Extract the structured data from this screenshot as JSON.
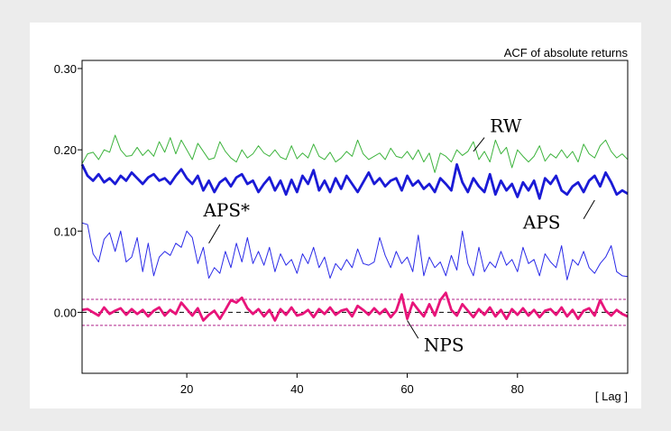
{
  "chart_data": {
    "type": "line",
    "title": "ACF of absolute returns",
    "xlabel": "[ Lag ]",
    "ylabel": "",
    "xlim": [
      1,
      100
    ],
    "ylim": [
      -0.075,
      0.31
    ],
    "x_ticks": [
      20,
      40,
      60,
      80
    ],
    "x_tick_labels": [
      "20",
      "40",
      "60",
      "80"
    ],
    "y_ticks": [
      0.0,
      0.1,
      0.2,
      0.3
    ],
    "y_tick_labels": [
      "0.00",
      "0.10",
      "0.20",
      "0.30"
    ],
    "grid": false,
    "legend": "none",
    "confidence_band": {
      "upper": 0.016,
      "lower": -0.016,
      "color": "#b0208a"
    },
    "zero_line_color": "#000000",
    "series": [
      {
        "name": "RW",
        "color": "#3cb33c",
        "width": 1,
        "label_at": [
          75,
          0.222
        ],
        "pointer": [
          [
            74,
            0.215
          ],
          [
            72,
            0.198
          ]
        ],
        "values": [
          0.183,
          0.195,
          0.197,
          0.188,
          0.2,
          0.197,
          0.218,
          0.2,
          0.192,
          0.193,
          0.203,
          0.193,
          0.2,
          0.192,
          0.21,
          0.197,
          0.215,
          0.195,
          0.212,
          0.2,
          0.188,
          0.208,
          0.198,
          0.188,
          0.19,
          0.21,
          0.198,
          0.19,
          0.185,
          0.2,
          0.19,
          0.195,
          0.205,
          0.196,
          0.192,
          0.2,
          0.191,
          0.188,
          0.205,
          0.189,
          0.196,
          0.19,
          0.207,
          0.192,
          0.188,
          0.197,
          0.185,
          0.19,
          0.198,
          0.192,
          0.212,
          0.195,
          0.188,
          0.192,
          0.196,
          0.188,
          0.202,
          0.192,
          0.19,
          0.198,
          0.188,
          0.2,
          0.185,
          0.196,
          0.172,
          0.196,
          0.192,
          0.185,
          0.2,
          0.193,
          0.198,
          0.21,
          0.188,
          0.198,
          0.185,
          0.212,
          0.195,
          0.203,
          0.178,
          0.2,
          0.192,
          0.185,
          0.192,
          0.205,
          0.186,
          0.195,
          0.19,
          0.2,
          0.19,
          0.198,
          0.185,
          0.207,
          0.195,
          0.19,
          0.205,
          0.212,
          0.198,
          0.19,
          0.195,
          0.188
        ]
      },
      {
        "name": "APS",
        "color": "#1a1ad6",
        "width": 2.8,
        "label_at": [
          81,
          0.103
        ],
        "pointer": [
          [
            92,
            0.115
          ],
          [
            94,
            0.138
          ]
        ],
        "values": [
          0.182,
          0.168,
          0.162,
          0.17,
          0.16,
          0.165,
          0.158,
          0.168,
          0.162,
          0.172,
          0.165,
          0.158,
          0.166,
          0.17,
          0.162,
          0.165,
          0.158,
          0.168,
          0.176,
          0.165,
          0.158,
          0.168,
          0.15,
          0.162,
          0.148,
          0.16,
          0.165,
          0.155,
          0.166,
          0.17,
          0.158,
          0.162,
          0.148,
          0.158,
          0.166,
          0.15,
          0.162,
          0.145,
          0.163,
          0.148,
          0.168,
          0.158,
          0.175,
          0.15,
          0.162,
          0.148,
          0.165,
          0.152,
          0.168,
          0.158,
          0.148,
          0.16,
          0.172,
          0.158,
          0.165,
          0.155,
          0.162,
          0.165,
          0.15,
          0.168,
          0.156,
          0.162,
          0.152,
          0.158,
          0.148,
          0.165,
          0.158,
          0.15,
          0.182,
          0.16,
          0.148,
          0.165,
          0.155,
          0.148,
          0.17,
          0.145,
          0.162,
          0.15,
          0.158,
          0.142,
          0.16,
          0.15,
          0.162,
          0.14,
          0.165,
          0.158,
          0.168,
          0.15,
          0.145,
          0.155,
          0.16,
          0.148,
          0.162,
          0.168,
          0.155,
          0.172,
          0.16,
          0.145,
          0.15,
          0.146
        ]
      },
      {
        "name": "APS*",
        "color": "#2a2ae8",
        "width": 1,
        "label_at": [
          23,
          0.118
        ],
        "pointer": [
          [
            26,
            0.108
          ],
          [
            24,
            0.085
          ]
        ],
        "values": [
          0.11,
          0.108,
          0.072,
          0.062,
          0.09,
          0.098,
          0.075,
          0.1,
          0.062,
          0.068,
          0.092,
          0.05,
          0.085,
          0.045,
          0.068,
          0.075,
          0.07,
          0.085,
          0.08,
          0.1,
          0.092,
          0.06,
          0.08,
          0.042,
          0.055,
          0.048,
          0.075,
          0.055,
          0.085,
          0.062,
          0.092,
          0.06,
          0.075,
          0.058,
          0.08,
          0.05,
          0.072,
          0.058,
          0.065,
          0.048,
          0.072,
          0.06,
          0.08,
          0.055,
          0.068,
          0.042,
          0.06,
          0.052,
          0.065,
          0.055,
          0.078,
          0.06,
          0.058,
          0.062,
          0.092,
          0.07,
          0.055,
          0.075,
          0.06,
          0.068,
          0.05,
          0.095,
          0.045,
          0.068,
          0.055,
          0.062,
          0.045,
          0.07,
          0.052,
          0.1,
          0.06,
          0.045,
          0.08,
          0.05,
          0.062,
          0.055,
          0.075,
          0.058,
          0.065,
          0.05,
          0.08,
          0.06,
          0.065,
          0.045,
          0.072,
          0.062,
          0.055,
          0.082,
          0.04,
          0.065,
          0.058,
          0.075,
          0.055,
          0.048,
          0.06,
          0.068,
          0.082,
          0.05,
          0.045,
          0.044
        ]
      },
      {
        "name": "NPS",
        "color": "#e8147a",
        "width": 2.8,
        "label_at": [
          63,
          -0.048
        ],
        "pointer": [
          [
            62,
            -0.032
          ],
          [
            60,
            -0.01
          ]
        ],
        "values": [
          0.003,
          0.004,
          0.0,
          -0.004,
          0.006,
          -0.002,
          0.002,
          0.005,
          -0.003,
          0.004,
          -0.002,
          0.003,
          -0.005,
          0.002,
          0.006,
          -0.004,
          0.003,
          -0.002,
          0.012,
          0.004,
          -0.004,
          0.005,
          -0.01,
          -0.003,
          0.002,
          -0.008,
          0.003,
          0.015,
          0.012,
          0.018,
          0.005,
          -0.002,
          0.004,
          -0.005,
          0.003,
          -0.01,
          0.004,
          -0.003,
          0.006,
          -0.004,
          -0.002,
          0.003,
          -0.006,
          0.004,
          -0.002,
          0.006,
          -0.003,
          0.002,
          0.004,
          -0.005,
          0.008,
          0.003,
          -0.003,
          0.005,
          -0.002,
          0.004,
          -0.006,
          0.002,
          0.022,
          -0.008,
          0.012,
          0.003,
          -0.005,
          0.01,
          -0.004,
          0.015,
          0.024,
          0.003,
          -0.004,
          0.01,
          0.002,
          -0.006,
          0.004,
          -0.003,
          0.006,
          -0.005,
          0.003,
          -0.008,
          0.004,
          -0.003,
          0.005,
          -0.004,
          0.003,
          -0.006,
          0.002,
          0.004,
          -0.003,
          0.006,
          -0.005,
          0.003,
          -0.008,
          0.002,
          0.005,
          -0.004,
          0.015,
          0.002,
          -0.004,
          0.003,
          -0.002,
          -0.005
        ]
      }
    ]
  }
}
